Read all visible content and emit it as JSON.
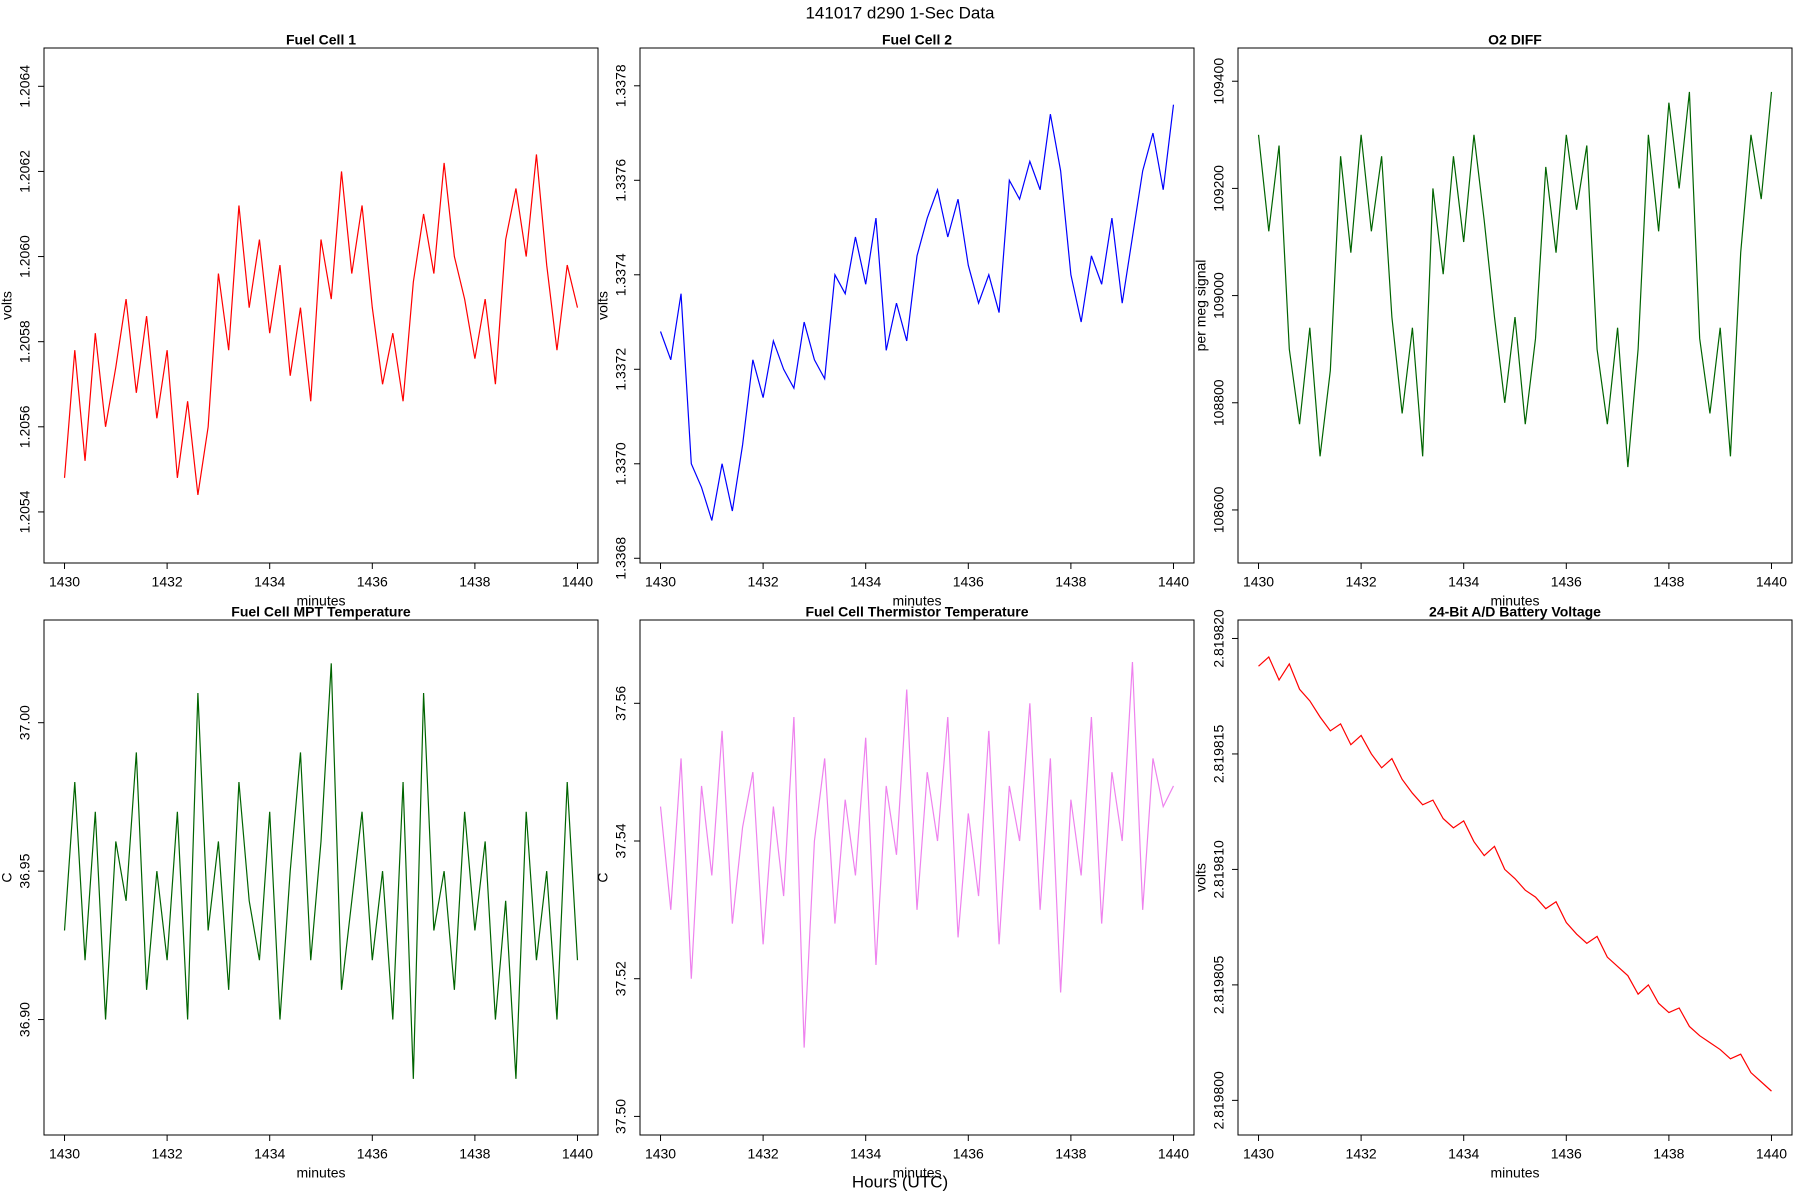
{
  "title": "141017   d290   1-Sec Data",
  "footer_label": "Hours (UTC)",
  "chart_data": [
    {
      "type": "line",
      "title": "Fuel Cell 1",
      "xlabel": "minutes",
      "ylabel": "volts",
      "color": "#ff0000",
      "x": [
        1430,
        1430.2,
        1430.4,
        1430.6,
        1430.8,
        1431,
        1431.2,
        1431.4,
        1431.6,
        1431.8,
        1432,
        1432.2,
        1432.4,
        1432.6,
        1432.8,
        1433,
        1433.2,
        1433.4,
        1433.6,
        1433.8,
        1434,
        1434.2,
        1434.4,
        1434.6,
        1434.8,
        1435,
        1435.2,
        1435.4,
        1435.6,
        1435.8,
        1436,
        1436.2,
        1436.4,
        1436.6,
        1436.8,
        1437,
        1437.2,
        1437.4,
        1437.6,
        1437.8,
        1438,
        1438.2,
        1438.4,
        1438.6,
        1438.8,
        1439,
        1439.2,
        1439.4,
        1439.6,
        1439.8,
        1440
      ],
      "values": [
        1.20548,
        1.20578,
        1.20552,
        1.20582,
        1.2056,
        1.20574,
        1.2059,
        1.20568,
        1.20586,
        1.20562,
        1.20578,
        1.20548,
        1.20566,
        1.20544,
        1.2056,
        1.20596,
        1.20578,
        1.20612,
        1.20588,
        1.20604,
        1.20582,
        1.20598,
        1.20572,
        1.20588,
        1.20566,
        1.20604,
        1.2059,
        1.2062,
        1.20596,
        1.20612,
        1.20588,
        1.2057,
        1.20582,
        1.20566,
        1.20594,
        1.2061,
        1.20596,
        1.20622,
        1.206,
        1.2059,
        1.20576,
        1.2059,
        1.2057,
        1.20604,
        1.20616,
        1.206,
        1.20624,
        1.20598,
        1.20578,
        1.20598,
        1.20588
      ],
      "xlim": [
        1429.6,
        1440.4
      ],
      "xticks": [
        1430,
        1432,
        1434,
        1436,
        1438,
        1440
      ],
      "ylim": [
        1.20528,
        1.20649
      ],
      "yticks": [
        1.2054,
        1.2056,
        1.2058,
        {
          "value": 1.206,
          "label": "1.2060"
        },
        1.2062,
        1.2064
      ]
    },
    {
      "type": "line",
      "title": "Fuel Cell 2",
      "xlabel": "minutes",
      "ylabel": "volts",
      "color": "#0000ff",
      "x": [
        1430,
        1430.2,
        1430.4,
        1430.6,
        1430.8,
        1431,
        1431.2,
        1431.4,
        1431.6,
        1431.8,
        1432,
        1432.2,
        1432.4,
        1432.6,
        1432.8,
        1433,
        1433.2,
        1433.4,
        1433.6,
        1433.8,
        1434,
        1434.2,
        1434.4,
        1434.6,
        1434.8,
        1435,
        1435.2,
        1435.4,
        1435.6,
        1435.8,
        1436,
        1436.2,
        1436.4,
        1436.6,
        1436.8,
        1437,
        1437.2,
        1437.4,
        1437.6,
        1437.8,
        1438,
        1438.2,
        1438.4,
        1438.6,
        1438.8,
        1439,
        1439.2,
        1439.4,
        1439.6,
        1439.8,
        1440
      ],
      "values": [
        1.33728,
        1.33722,
        1.33736,
        1.337,
        1.33695,
        1.33688,
        1.337,
        1.3369,
        1.33704,
        1.33722,
        1.33714,
        1.33726,
        1.3372,
        1.33716,
        1.3373,
        1.33722,
        1.33718,
        1.3374,
        1.33736,
        1.33748,
        1.33738,
        1.33752,
        1.33724,
        1.33734,
        1.33726,
        1.33744,
        1.33752,
        1.33758,
        1.33748,
        1.33756,
        1.33742,
        1.33734,
        1.3374,
        1.33732,
        1.3376,
        1.33756,
        1.33764,
        1.33758,
        1.33774,
        1.33762,
        1.3374,
        1.3373,
        1.33744,
        1.33738,
        1.33752,
        1.33734,
        1.33748,
        1.33762,
        1.3377,
        1.33758,
        1.33776
      ],
      "xlim": [
        1429.6,
        1440.4
      ],
      "xticks": [
        1430,
        1432,
        1434,
        1436,
        1438,
        1440
      ],
      "ylim": [
        1.33679,
        1.33788
      ],
      "yticks": [
        1.3368,
        {
          "value": 1.337,
          "label": "1.3370"
        },
        1.3372,
        1.3374,
        1.3376,
        1.3378
      ]
    },
    {
      "type": "line",
      "title": "O2 DIFF",
      "xlabel": "minutes",
      "ylabel": "per meg signal",
      "color": "#006400",
      "x": [
        1430,
        1430.2,
        1430.4,
        1430.6,
        1430.8,
        1431,
        1431.2,
        1431.4,
        1431.6,
        1431.8,
        1432,
        1432.2,
        1432.4,
        1432.6,
        1432.8,
        1433,
        1433.2,
        1433.4,
        1433.6,
        1433.8,
        1434,
        1434.2,
        1434.4,
        1434.6,
        1434.8,
        1435,
        1435.2,
        1435.4,
        1435.6,
        1435.8,
        1436,
        1436.2,
        1436.4,
        1436.6,
        1436.8,
        1437,
        1437.2,
        1437.4,
        1437.6,
        1437.8,
        1438,
        1438.2,
        1438.4,
        1438.6,
        1438.8,
        1439,
        1439.2,
        1439.4,
        1439.6,
        1439.8,
        1440
      ],
      "values": [
        109300,
        109120,
        109280,
        108900,
        108760,
        108940,
        108700,
        108860,
        109260,
        109080,
        109300,
        109120,
        109260,
        108960,
        108780,
        108940,
        108700,
        109200,
        109040,
        109260,
        109100,
        109300,
        109140,
        108960,
        108800,
        108960,
        108760,
        108920,
        109240,
        109080,
        109300,
        109160,
        109280,
        108900,
        108760,
        108940,
        108680,
        108900,
        109300,
        109120,
        109360,
        109200,
        109380,
        108920,
        108780,
        108940,
        108700,
        109080,
        109300,
        109180,
        109380
      ],
      "xlim": [
        1429.6,
        1440.4
      ],
      "xticks": [
        1430,
        1432,
        1434,
        1436,
        1438,
        1440
      ],
      "ylim": [
        108501,
        109462
      ],
      "yticks": [
        108600,
        108800,
        109000,
        109200,
        109400
      ]
    },
    {
      "type": "line",
      "title": "Fuel Cell MPT Temperature",
      "xlabel": "minutes",
      "ylabel": "C",
      "color": "#006400",
      "x": [
        1430,
        1430.2,
        1430.4,
        1430.6,
        1430.8,
        1431,
        1431.2,
        1431.4,
        1431.6,
        1431.8,
        1432,
        1432.2,
        1432.4,
        1432.6,
        1432.8,
        1433,
        1433.2,
        1433.4,
        1433.6,
        1433.8,
        1434,
        1434.2,
        1434.4,
        1434.6,
        1434.8,
        1435,
        1435.2,
        1435.4,
        1435.6,
        1435.8,
        1436,
        1436.2,
        1436.4,
        1436.6,
        1436.8,
        1437,
        1437.2,
        1437.4,
        1437.6,
        1437.8,
        1438,
        1438.2,
        1438.4,
        1438.6,
        1438.8,
        1439,
        1439.2,
        1439.4,
        1439.6,
        1439.8,
        1440
      ],
      "values": [
        36.93,
        36.98,
        36.92,
        36.97,
        36.9,
        36.96,
        36.94,
        36.99,
        36.91,
        36.95,
        36.92,
        36.97,
        36.9,
        37.01,
        36.93,
        36.96,
        36.91,
        36.98,
        36.94,
        36.92,
        36.97,
        36.9,
        36.95,
        36.99,
        36.92,
        36.96,
        37.02,
        36.91,
        36.94,
        36.97,
        36.92,
        36.95,
        36.9,
        36.98,
        36.88,
        37.01,
        36.93,
        36.95,
        36.91,
        36.97,
        36.93,
        36.96,
        36.9,
        36.94,
        36.88,
        36.97,
        36.92,
        36.95,
        36.9,
        36.98,
        36.92
      ],
      "xlim": [
        1429.6,
        1440.4
      ],
      "xticks": [
        1430,
        1432,
        1434,
        1436,
        1438,
        1440
      ],
      "ylim": [
        36.8611,
        37.0346
      ],
      "yticks": [
        {
          "value": 36.9,
          "label": "36.90"
        },
        36.95,
        {
          "value": 37,
          "label": "37.00"
        }
      ]
    },
    {
      "type": "line",
      "title": "Fuel Cell Thermistor Temperature",
      "xlabel": "minutes",
      "ylabel": "C",
      "color": "#ee82ee",
      "x": [
        1430,
        1430.2,
        1430.4,
        1430.6,
        1430.8,
        1431,
        1431.2,
        1431.4,
        1431.6,
        1431.8,
        1432,
        1432.2,
        1432.4,
        1432.6,
        1432.8,
        1433,
        1433.2,
        1433.4,
        1433.6,
        1433.8,
        1434,
        1434.2,
        1434.4,
        1434.6,
        1434.8,
        1435,
        1435.2,
        1435.4,
        1435.6,
        1435.8,
        1436,
        1436.2,
        1436.4,
        1436.6,
        1436.8,
        1437,
        1437.2,
        1437.4,
        1437.6,
        1437.8,
        1438,
        1438.2,
        1438.4,
        1438.6,
        1438.8,
        1439,
        1439.2,
        1439.4,
        1439.6,
        1439.8,
        1440
      ],
      "values": [
        37.545,
        37.53,
        37.552,
        37.52,
        37.548,
        37.535,
        37.556,
        37.528,
        37.542,
        37.55,
        37.525,
        37.545,
        37.532,
        37.558,
        37.51,
        37.54,
        37.552,
        37.528,
        37.546,
        37.535,
        37.555,
        37.522,
        37.548,
        37.538,
        37.562,
        37.53,
        37.55,
        37.54,
        37.558,
        37.526,
        37.544,
        37.532,
        37.556,
        37.525,
        37.548,
        37.54,
        37.56,
        37.53,
        37.552,
        37.518,
        37.546,
        37.535,
        37.558,
        37.528,
        37.55,
        37.54,
        37.566,
        37.53,
        37.552,
        37.545,
        37.548
      ],
      "xlim": [
        1429.6,
        1440.4
      ],
      "xticks": [
        1430,
        1432,
        1434,
        1436,
        1438,
        1440
      ],
      "ylim": [
        37.4973,
        37.5721
      ],
      "yticks": [
        {
          "value": 37.5,
          "label": "37.50"
        },
        37.52,
        37.54,
        37.56
      ]
    },
    {
      "type": "line",
      "title": "24-Bit A/D Battery Voltage",
      "xlabel": "minutes",
      "ylabel": "volts",
      "color": "#ff0000",
      "x": [
        1430,
        1430.2,
        1430.4,
        1430.6,
        1430.8,
        1431,
        1431.2,
        1431.4,
        1431.6,
        1431.8,
        1432,
        1432.2,
        1432.4,
        1432.6,
        1432.8,
        1433,
        1433.2,
        1433.4,
        1433.6,
        1433.8,
        1434,
        1434.2,
        1434.4,
        1434.6,
        1434.8,
        1435,
        1435.2,
        1435.4,
        1435.6,
        1435.8,
        1436,
        1436.2,
        1436.4,
        1436.6,
        1436.8,
        1437,
        1437.2,
        1437.4,
        1437.6,
        1437.8,
        1438,
        1438.2,
        1438.4,
        1438.6,
        1438.8,
        1439,
        1439.2,
        1439.4,
        1439.6,
        1439.8,
        1440
      ],
      "values": [
        2.8198188,
        2.8198192,
        2.8198182,
        2.8198189,
        2.8198178,
        2.8198173,
        2.8198166,
        2.819816,
        2.8198163,
        2.8198154,
        2.8198158,
        2.819815,
        2.8198144,
        2.8198148,
        2.8198139,
        2.8198133,
        2.8198128,
        2.819813,
        2.8198122,
        2.8198118,
        2.8198121,
        2.8198112,
        2.8198106,
        2.819811,
        2.81981,
        2.8198096,
        2.8198091,
        2.8198088,
        2.8198083,
        2.8198086,
        2.8198077,
        2.8198072,
        2.8198068,
        2.8198071,
        2.8198062,
        2.8198058,
        2.8198054,
        2.8198046,
        2.819805,
        2.8198042,
        2.8198038,
        2.819804,
        2.8198032,
        2.8198028,
        2.8198025,
        2.8198022,
        2.8198018,
        2.819802,
        2.8198012,
        2.8198008,
        2.8198004
      ],
      "xlim": [
        1429.6,
        1440.4
      ],
      "xticks": [
        1430,
        1432,
        1434,
        1436,
        1438,
        1440
      ],
      "ylim": [
        2.8197985,
        2.8198208
      ],
      "yticks": [
        {
          "value": 2.8198,
          "label": "2.819800"
        },
        2.819805,
        {
          "value": 2.81981,
          "label": "2.819810"
        },
        2.819815,
        {
          "value": 2.81982,
          "label": "2.819820"
        }
      ]
    }
  ]
}
